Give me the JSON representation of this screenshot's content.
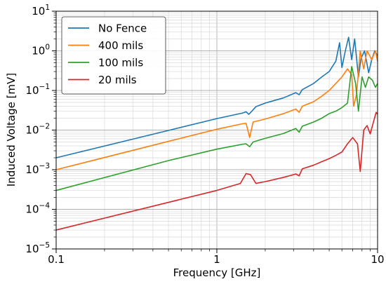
{
  "chart_data": {
    "type": "line",
    "title": "",
    "xlabel": "Frequency [GHz]",
    "ylabel": "Induced Voltage [mV]",
    "x_scale": "log",
    "y_scale": "log",
    "xlim": [
      0.1,
      10
    ],
    "ylim": [
      1e-05,
      10
    ],
    "grid": "major and minor",
    "legend_position": "upper-left",
    "x_ticks": [
      {
        "value": 0.1,
        "label": "0.1"
      },
      {
        "value": 1,
        "label": "1"
      },
      {
        "value": 10,
        "label": "10"
      }
    ],
    "y_ticks": [
      {
        "value": 1e-05,
        "base": "10",
        "exp": "−5"
      },
      {
        "value": 0.0001,
        "base": "10",
        "exp": "−4"
      },
      {
        "value": 0.001,
        "base": "10",
        "exp": "−3"
      },
      {
        "value": 0.01,
        "base": "10",
        "exp": "−2"
      },
      {
        "value": 0.1,
        "base": "10",
        "exp": "−1"
      },
      {
        "value": 1,
        "base": "10",
        "exp": "0"
      },
      {
        "value": 10,
        "base": "10",
        "exp": "1"
      }
    ],
    "series": [
      {
        "name": "No Fence",
        "color": "#1f77b4",
        "points": [
          [
            0.1,
            0.002
          ],
          [
            0.5,
            0.0098
          ],
          [
            1.0,
            0.0195
          ],
          [
            1.45,
            0.027
          ],
          [
            1.52,
            0.029
          ],
          [
            1.58,
            0.025
          ],
          [
            1.65,
            0.03
          ],
          [
            1.75,
            0.039
          ],
          [
            2.0,
            0.048
          ],
          [
            2.6,
            0.065
          ],
          [
            3.1,
            0.088
          ],
          [
            3.25,
            0.078
          ],
          [
            3.4,
            0.105
          ],
          [
            4.0,
            0.15
          ],
          [
            4.5,
            0.22
          ],
          [
            5.0,
            0.3
          ],
          [
            5.5,
            0.55
          ],
          [
            5.8,
            1.6
          ],
          [
            6.0,
            0.38
          ],
          [
            6.3,
            1.0
          ],
          [
            6.6,
            2.2
          ],
          [
            6.9,
            0.6
          ],
          [
            7.2,
            2.0
          ],
          [
            7.6,
            0.22
          ],
          [
            7.9,
            0.65
          ],
          [
            8.3,
            1.0
          ],
          [
            8.8,
            0.28
          ],
          [
            9.2,
            0.6
          ],
          [
            9.6,
            1.0
          ],
          [
            10.0,
            0.75
          ]
        ]
      },
      {
        "name": "400 mils",
        "color": "#ff7f0e",
        "points": [
          [
            0.1,
            0.001
          ],
          [
            0.5,
            0.0052
          ],
          [
            1.0,
            0.0105
          ],
          [
            1.45,
            0.0145
          ],
          [
            1.52,
            0.0148
          ],
          [
            1.6,
            0.0065
          ],
          [
            1.68,
            0.016
          ],
          [
            2.0,
            0.019
          ],
          [
            2.6,
            0.026
          ],
          [
            3.1,
            0.034
          ],
          [
            3.25,
            0.028
          ],
          [
            3.4,
            0.04
          ],
          [
            4.0,
            0.052
          ],
          [
            4.5,
            0.072
          ],
          [
            5.0,
            0.1
          ],
          [
            5.5,
            0.15
          ],
          [
            6.0,
            0.22
          ],
          [
            6.5,
            0.35
          ],
          [
            6.9,
            0.25
          ],
          [
            7.1,
            0.04
          ],
          [
            7.4,
            0.08
          ],
          [
            7.8,
            1.0
          ],
          [
            8.2,
            0.35
          ],
          [
            8.6,
            1.0
          ],
          [
            9.2,
            0.6
          ],
          [
            9.7,
            1.0
          ],
          [
            10.0,
            0.55
          ]
        ]
      },
      {
        "name": "100 mils",
        "color": "#2ca02c",
        "points": [
          [
            0.1,
            0.0003
          ],
          [
            0.5,
            0.0017
          ],
          [
            1.0,
            0.0033
          ],
          [
            1.45,
            0.0044
          ],
          [
            1.52,
            0.0045
          ],
          [
            1.6,
            0.0038
          ],
          [
            1.68,
            0.005
          ],
          [
            2.0,
            0.0062
          ],
          [
            2.6,
            0.0082
          ],
          [
            3.1,
            0.011
          ],
          [
            3.25,
            0.0088
          ],
          [
            3.4,
            0.0125
          ],
          [
            4.0,
            0.016
          ],
          [
            4.5,
            0.02
          ],
          [
            5.0,
            0.026
          ],
          [
            5.5,
            0.03
          ],
          [
            6.0,
            0.037
          ],
          [
            6.5,
            0.048
          ],
          [
            6.9,
            0.4
          ],
          [
            7.3,
            0.15
          ],
          [
            7.6,
            0.03
          ],
          [
            8.0,
            0.22
          ],
          [
            8.4,
            0.12
          ],
          [
            8.8,
            0.22
          ],
          [
            9.3,
            0.18
          ],
          [
            9.7,
            0.12
          ],
          [
            10.0,
            0.15
          ]
        ]
      },
      {
        "name": "20 mils",
        "color": "#d62728",
        "points": [
          [
            0.1,
            3e-05
          ],
          [
            0.5,
            0.00015
          ],
          [
            1.0,
            0.0003
          ],
          [
            1.4,
            0.00045
          ],
          [
            1.52,
            0.0008
          ],
          [
            1.62,
            0.00075
          ],
          [
            1.75,
            0.00045
          ],
          [
            2.0,
            0.0005
          ],
          [
            2.6,
            0.00064
          ],
          [
            3.1,
            0.00078
          ],
          [
            3.25,
            0.0007
          ],
          [
            3.4,
            0.00105
          ],
          [
            4.0,
            0.0013
          ],
          [
            4.5,
            0.0016
          ],
          [
            5.0,
            0.0019
          ],
          [
            5.5,
            0.0023
          ],
          [
            6.0,
            0.0028
          ],
          [
            6.5,
            0.0045
          ],
          [
            7.0,
            0.0065
          ],
          [
            7.5,
            0.0045
          ],
          [
            7.8,
            0.0009
          ],
          [
            8.2,
            0.01
          ],
          [
            8.6,
            0.013
          ],
          [
            9.0,
            0.008
          ],
          [
            9.5,
            0.018
          ],
          [
            9.8,
            0.028
          ],
          [
            10.0,
            0.025
          ]
        ]
      }
    ]
  }
}
